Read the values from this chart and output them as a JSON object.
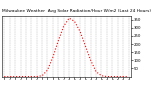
{
  "title": "Milwaukee Weather  Avg Solar Radiation/Hour W/m2 (Last 24 Hours)",
  "x_values": [
    0,
    1,
    2,
    3,
    4,
    5,
    6,
    7,
    8,
    9,
    10,
    11,
    12,
    13,
    14,
    15,
    16,
    17,
    18,
    19,
    20,
    21,
    22,
    23
  ],
  "y_values": [
    0,
    0,
    0,
    0,
    0,
    0,
    0,
    5,
    40,
    120,
    220,
    310,
    360,
    340,
    280,
    190,
    100,
    30,
    5,
    0,
    0,
    0,
    0,
    0
  ],
  "ylim": [
    0,
    375
  ],
  "line_color": "#ff0000",
  "bg_color": "#ffffff",
  "grid_color": "#999999",
  "title_fontsize": 3.2,
  "tick_fontsize": 2.8,
  "ytick_values": [
    50,
    100,
    150,
    200,
    250,
    300,
    350
  ]
}
